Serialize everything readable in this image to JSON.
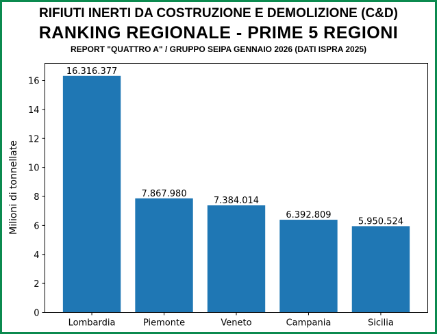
{
  "chart_data": {
    "type": "bar",
    "title": "RIFIUTI INERTI DA COSTRUZIONE E DEMOLIZIONE (C&D)",
    "subtitle": "RANKING REGIONALE - PRIME 5 REGIONI",
    "subtitle2": "REPORT \"QUATTRO A\" / GRUPPO SEIPA GENNAIO 2026 (DATI ISPRA 2025)",
    "xlabel": "",
    "ylabel": "Milioni di tonnellate",
    "categories": [
      "Lombardia",
      "Piemonte",
      "Veneto",
      "Campania",
      "Sicilia"
    ],
    "values": [
      16.316377,
      7.86798,
      7.384014,
      6.392809,
      5.950524
    ],
    "data_labels": [
      "16.316.377",
      "7.867.980",
      "7.384.014",
      "6.392.809",
      "5.950.524"
    ],
    "yticks": [
      0,
      2,
      4,
      6,
      8,
      10,
      12,
      14,
      16
    ],
    "ylim": [
      0,
      17.18
    ],
    "bar_color": "#1f77b4",
    "border_color": "#0b8a4f",
    "grid": false
  }
}
